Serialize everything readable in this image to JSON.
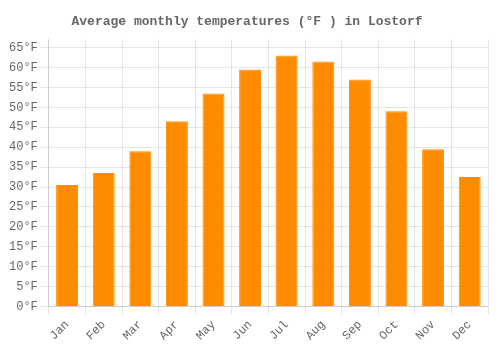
{
  "chart_data": {
    "type": "bar",
    "title": "Average monthly temperatures (°F ) in Lostorf",
    "categories": [
      "Jan",
      "Feb",
      "Mar",
      "Apr",
      "May",
      "Jun",
      "Jul",
      "Aug",
      "Sep",
      "Oct",
      "Nov",
      "Dec"
    ],
    "values": [
      30.5,
      33.5,
      39.0,
      46.5,
      53.5,
      59.5,
      63.0,
      61.5,
      57.0,
      49.0,
      39.5,
      32.5
    ],
    "color": "#FF8C00",
    "ylim": [
      0,
      67
    ],
    "yticks": [
      {
        "value": 0,
        "label": "0°F"
      },
      {
        "value": 5,
        "label": "5°F"
      },
      {
        "value": 10,
        "label": "10°F"
      },
      {
        "value": 15,
        "label": "15°F"
      },
      {
        "value": 20,
        "label": "20°F"
      },
      {
        "value": 25,
        "label": "25°F"
      },
      {
        "value": 30,
        "label": "30°F"
      },
      {
        "value": 35,
        "label": "35°F"
      },
      {
        "value": 40,
        "label": "40°F"
      },
      {
        "value": 45,
        "label": "45°F"
      },
      {
        "value": 50,
        "label": "50°F"
      },
      {
        "value": 55,
        "label": "55°F"
      },
      {
        "value": 60,
        "label": "60°F"
      },
      {
        "value": 65,
        "label": "65°F"
      }
    ],
    "grid": true
  }
}
